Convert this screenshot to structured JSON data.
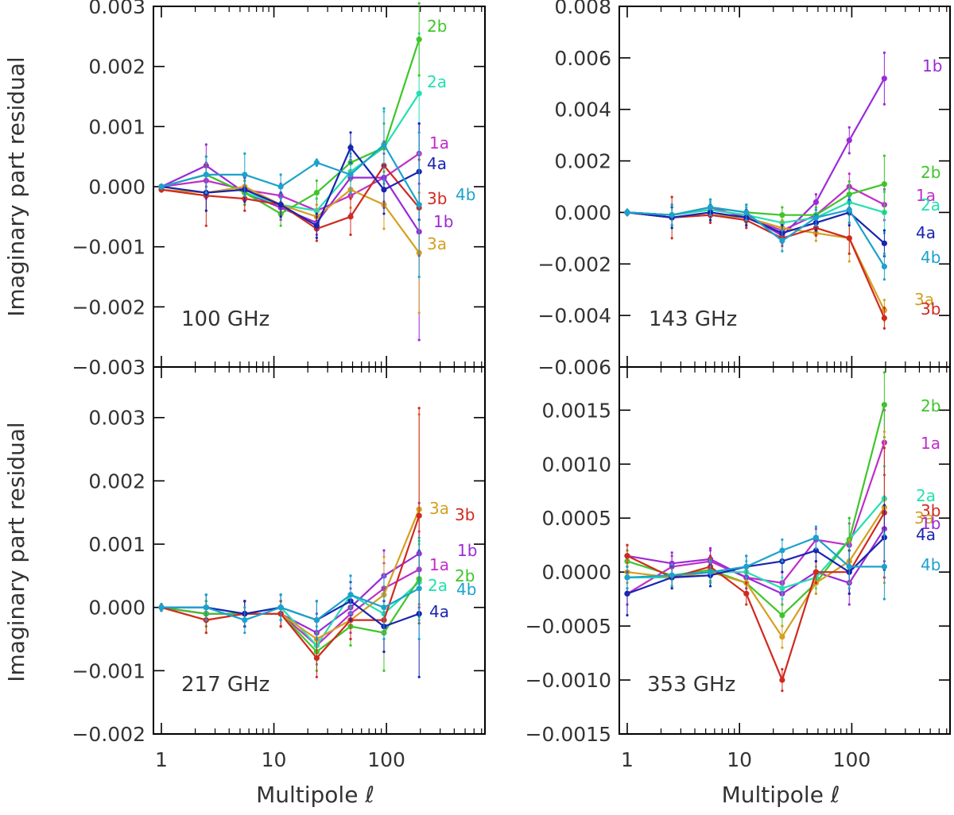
{
  "chart_data": [
    {
      "type": "line",
      "title": "100 GHz",
      "xlabel": "",
      "ylabel": "Imaginary part residual",
      "xscale": "log",
      "xlim": [
        0.85,
        750
      ],
      "xticks": [
        1,
        10,
        100
      ],
      "xtick_labels": [
        "",
        "",
        ""
      ],
      "ylim": [
        -0.003,
        0.003
      ],
      "yticks": [
        -0.003,
        -0.002,
        -0.001,
        0.0,
        0.001,
        0.002,
        0.003
      ],
      "ytick_labels": [
        "−0.003",
        "−0.002",
        "−0.001",
        "0.000",
        "0.001",
        "0.002",
        "0.003"
      ],
      "x": [
        1,
        2.5,
        5.5,
        11.5,
        24,
        48,
        95,
        195
      ],
      "series": [
        {
          "name": "1a",
          "color": "#c02ec8",
          "values": [
            0.0,
            0.0001,
            -5e-05,
            -0.00015,
            -0.0004,
            -0.00015,
            0.00015,
            0.00055
          ],
          "err": [
            3e-05,
            0.0003,
            0.0002,
            0.0002,
            0.0002,
            0.0003,
            0.0004,
            0.0005
          ]
        },
        {
          "name": "1b",
          "color": "#9b2ad8",
          "values": [
            0.0,
            0.00035,
            -0.0001,
            -0.00035,
            -0.0006,
            0.00015,
            0.00015,
            -0.00075
          ],
          "err": [
            3e-05,
            0.00035,
            0.0002,
            0.0002,
            0.0002,
            0.0003,
            0.0005,
            0.0018
          ]
        },
        {
          "name": "2a",
          "color": "#22e0b0",
          "values": [
            0.0,
            0.0002,
            -0.0001,
            -0.0003,
            -0.0004,
            0.00025,
            0.00065,
            0.00155
          ],
          "err": [
            3e-05,
            0.0003,
            0.0002,
            0.0002,
            0.0002,
            0.0003,
            0.0006,
            0.001
          ]
        },
        {
          "name": "2b",
          "color": "#3fc52a",
          "values": [
            0.0,
            0.0002,
            -0.0001,
            -0.00045,
            -0.0001,
            0.0004,
            0.00065,
            0.00245
          ],
          "err": [
            3e-05,
            0.0003,
            0.0002,
            0.0002,
            0.0002,
            0.0003,
            0.0004,
            0.0006
          ]
        },
        {
          "name": "3a",
          "color": "#d4a020",
          "values": [
            -5e-05,
            -0.0001,
            0.0,
            -0.0003,
            -0.0005,
            -5e-05,
            -0.0003,
            -0.0011
          ],
          "err": [
            3e-05,
            0.0003,
            0.0002,
            0.0002,
            0.0002,
            0.0003,
            0.0004,
            0.001
          ]
        },
        {
          "name": "3b",
          "color": "#d02a1f",
          "values": [
            -5e-05,
            -0.00015,
            -0.0002,
            -0.0003,
            -0.0007,
            -0.0005,
            0.00035,
            -0.00035
          ],
          "err": [
            3e-05,
            0.0005,
            0.0002,
            0.0002,
            0.0002,
            0.0003,
            0.0004,
            0.0008
          ]
        },
        {
          "name": "4a",
          "color": "#1a24b0",
          "values": [
            0.0,
            -0.0001,
            -5e-05,
            -0.0003,
            -0.00065,
            0.00065,
            -5e-05,
            0.00025
          ],
          "err": [
            3e-05,
            0.0003,
            0.0002,
            0.0002,
            0.0002,
            0.00025,
            0.0004,
            0.0008
          ]
        },
        {
          "name": "4b",
          "color": "#1ca2cc",
          "values": [
            0.0,
            0.0002,
            0.0002,
            0.0,
            0.0004,
            0.0002,
            0.0007,
            -0.0003
          ],
          "err": [
            3e-05,
            0.0003,
            0.00035,
            0.0002,
            5e-05,
            0.0003,
            0.0006,
            0.0012
          ]
        }
      ],
      "series_labels": [
        "2b",
        "2a",
        "1a",
        "4a",
        "4b",
        "3b",
        "1b",
        "3a"
      ]
    },
    {
      "type": "line",
      "title": "143 GHz",
      "xlabel": "",
      "ylabel": "",
      "xscale": "log",
      "xlim": [
        0.85,
        750
      ],
      "xticks": [
        1,
        10,
        100
      ],
      "xtick_labels": [
        "",
        "",
        ""
      ],
      "ylim": [
        -0.006,
        0.008
      ],
      "yticks": [
        -0.006,
        -0.004,
        -0.002,
        0.0,
        0.002,
        0.004,
        0.006,
        0.008
      ],
      "ytick_labels": [
        "−0.006",
        "−0.004",
        "−0.002",
        "0.000",
        "0.002",
        "0.004",
        "0.006",
        "0.008"
      ],
      "x": [
        1,
        2.5,
        5.5,
        11.5,
        24,
        48,
        95,
        195
      ],
      "series": [
        {
          "name": "1a",
          "color": "#c02ec8",
          "values": [
            0.0,
            -0.0001,
            0.0002,
            -0.0002,
            -0.0007,
            -0.0001,
            0.001,
            0.0003
          ],
          "err": [
            0.0001,
            0.0004,
            0.0003,
            0.0003,
            0.0003,
            0.0003,
            0.0005,
            0.0006
          ]
        },
        {
          "name": "1b",
          "color": "#9b2ad8",
          "values": [
            0.0,
            -0.0001,
            0.0001,
            -0.0001,
            -0.0009,
            0.0004,
            0.0028,
            0.0052
          ],
          "err": [
            0.0001,
            0.0004,
            0.0003,
            0.0003,
            0.0003,
            0.0003,
            0.0005,
            0.001
          ]
        },
        {
          "name": "2a",
          "color": "#22e0b0",
          "values": [
            0.0,
            -0.0001,
            0.0001,
            -0.0001,
            -0.0004,
            -0.0002,
            0.0004,
            0.0
          ],
          "err": [
            0.0001,
            0.0004,
            0.0003,
            0.0003,
            0.0003,
            0.0003,
            0.0005,
            0.0008
          ]
        },
        {
          "name": "2b",
          "color": "#3fc52a",
          "values": [
            0.0,
            -0.0001,
            0.0002,
            0.0,
            -0.0001,
            -0.0001,
            0.0007,
            0.0011
          ],
          "err": [
            0.0001,
            0.0004,
            0.0003,
            0.0003,
            0.0003,
            0.0003,
            0.0005,
            0.0011
          ]
        },
        {
          "name": "3a",
          "color": "#d4a020",
          "values": [
            0.0,
            -0.0002,
            -0.0001,
            -0.0002,
            -0.0006,
            -0.0008,
            -0.001,
            -0.0038
          ],
          "err": [
            0.0001,
            0.0004,
            0.0003,
            0.0003,
            0.0003,
            0.0003,
            0.0009,
            0.0004
          ]
        },
        {
          "name": "3b",
          "color": "#d02a1f",
          "values": [
            0.0,
            -0.0002,
            -0.0001,
            -0.0003,
            -0.001,
            -0.0006,
            -0.001,
            -0.0041
          ],
          "err": [
            0.0001,
            0.0008,
            0.0003,
            0.0003,
            0.0003,
            0.0003,
            0.0006,
            0.0004
          ]
        },
        {
          "name": "4a",
          "color": "#1a24b0",
          "values": [
            0.0,
            -0.0002,
            0.0,
            -0.0002,
            -0.0008,
            -0.0004,
            0.0,
            -0.0012
          ],
          "err": [
            0.0001,
            0.0004,
            0.0003,
            0.0003,
            0.0003,
            0.0003,
            0.0005,
            0.0005
          ]
        },
        {
          "name": "4b",
          "color": "#1ca2cc",
          "values": [
            0.0,
            -0.0001,
            0.0002,
            0.0,
            -0.0011,
            -0.0002,
            0.0001,
            -0.0021
          ],
          "err": [
            0.0001,
            0.0004,
            0.0003,
            0.0003,
            0.0004,
            0.0003,
            0.0005,
            0.0005
          ]
        }
      ],
      "series_labels": [
        "1b",
        "2b",
        "1a",
        "2a",
        "4a",
        "4b",
        "3a",
        "3b"
      ]
    },
    {
      "type": "line",
      "title": "217 GHz",
      "xlabel": "Multipole ℓ",
      "ylabel": "Imaginary part residual",
      "xscale": "log",
      "xlim": [
        0.85,
        750
      ],
      "xticks": [
        1,
        10,
        100
      ],
      "xtick_labels": [
        "1",
        "10",
        "100"
      ],
      "ylim": [
        -0.002,
        0.0038
      ],
      "yticks": [
        -0.002,
        -0.001,
        0.0,
        0.001,
        0.002,
        0.003
      ],
      "ytick_labels": [
        "−0.002",
        "−0.001",
        "0.000",
        "0.001",
        "0.002",
        "0.003"
      ],
      "x": [
        1,
        2.5,
        5.5,
        11.5,
        24,
        48,
        95,
        195
      ],
      "series": [
        {
          "name": "1a",
          "color": "#c02ec8",
          "values": [
            0.0,
            -0.0001,
            -0.0001,
            -0.0001,
            -0.0006,
            -0.0001,
            0.0003,
            0.0006
          ],
          "err": [
            5e-05,
            0.0002,
            0.0002,
            0.0002,
            0.0003,
            0.0003,
            0.0004,
            0.0006
          ]
        },
        {
          "name": "1b",
          "color": "#9b2ad8",
          "values": [
            0.0,
            -0.0001,
            -0.0001,
            -0.0001,
            -0.0004,
            0.0,
            0.0005,
            0.00085
          ],
          "err": [
            5e-05,
            0.0002,
            0.0002,
            0.0002,
            0.0003,
            0.0003,
            0.0004,
            0.0008
          ]
        },
        {
          "name": "2a",
          "color": "#22e0b0",
          "values": [
            0.0,
            0.0,
            -0.0001,
            0.0,
            -0.0006,
            0.0002,
            -0.0001,
            0.0004
          ],
          "err": [
            5e-05,
            0.0002,
            0.0002,
            0.0002,
            0.0003,
            0.0003,
            0.0004,
            0.0006
          ]
        },
        {
          "name": "2b",
          "color": "#3fc52a",
          "values": [
            0.0,
            -0.0001,
            -0.0001,
            -0.0001,
            -0.0007,
            -0.0003,
            -0.0004,
            0.00045
          ],
          "err": [
            5e-05,
            0.0002,
            0.0002,
            0.0002,
            0.0003,
            0.0003,
            0.0006,
            0.0006
          ]
        },
        {
          "name": "3a",
          "color": "#d4a020",
          "values": [
            0.0,
            -0.0002,
            -0.0001,
            -0.0001,
            -0.0005,
            -0.0002,
            0.0002,
            0.00155
          ],
          "err": [
            5e-05,
            0.0002,
            0.0002,
            0.0002,
            0.0003,
            0.0003,
            0.0006,
            0.0015
          ]
        },
        {
          "name": "3b",
          "color": "#d02a1f",
          "values": [
            0.0,
            -0.0002,
            -0.0001,
            -0.0001,
            -0.0008,
            -0.0002,
            -0.0002,
            0.00145
          ],
          "err": [
            5e-05,
            0.0002,
            0.0002,
            0.0002,
            0.0003,
            0.0003,
            0.0005,
            0.0017
          ]
        },
        {
          "name": "4a",
          "color": "#1a24b0",
          "values": [
            0.0,
            0.0,
            -0.0001,
            0.0,
            -0.0002,
            0.0001,
            -0.0003,
            -0.0001
          ],
          "err": [
            5e-05,
            0.0002,
            0.0002,
            0.0002,
            0.0003,
            0.0003,
            0.0004,
            0.001
          ]
        },
        {
          "name": "4b",
          "color": "#1ca2cc",
          "values": [
            0.0,
            0.0,
            -0.0002,
            0.0,
            -0.0002,
            0.0002,
            0.0,
            0.0003
          ],
          "err": [
            5e-05,
            0.0002,
            0.0002,
            0.0002,
            0.0003,
            0.0003,
            0.0005,
            0.0008
          ]
        }
      ],
      "series_labels": [
        "3a",
        "3b",
        "1b",
        "1a",
        "2b",
        "2a",
        "4b",
        "4a"
      ]
    },
    {
      "type": "line",
      "title": "353 GHz",
      "xlabel": "Multipole ℓ",
      "ylabel": "",
      "xscale": "log",
      "xlim": [
        0.85,
        750
      ],
      "xticks": [
        1,
        10,
        100
      ],
      "xtick_labels": [
        "1",
        "10",
        "100"
      ],
      "ylim": [
        -0.0015,
        0.0019
      ],
      "yticks": [
        -0.0015,
        -0.001,
        -0.0005,
        0.0,
        0.0005,
        0.001,
        0.0015
      ],
      "ytick_labels": [
        "−0.0015",
        "−0.0010",
        "−0.0005",
        "0.0000",
        "0.0005",
        "0.0010",
        "0.0015"
      ],
      "x": [
        1,
        2.5,
        5.5,
        11.5,
        24,
        48,
        95,
        195
      ],
      "series": [
        {
          "name": "1a",
          "color": "#c02ec8",
          "values": [
            -0.0002,
            5e-05,
            0.0001,
            -5e-05,
            -0.0001,
            0.0003,
            0.00025,
            0.0012
          ],
          "err": [
            0.0001,
            0.0001,
            0.0001,
            0.0001,
            0.0001,
            0.0001,
            0.0002,
            0.0003
          ]
        },
        {
          "name": "1b",
          "color": "#9b2ad8",
          "values": [
            0.00015,
            8e-05,
            0.00012,
            -5e-05,
            -0.0002,
            0.0,
            -0.0001,
            0.0004
          ],
          "err": [
            0.0001,
            0.0001,
            0.0001,
            0.0001,
            0.0001,
            0.0001,
            0.0002,
            0.0003
          ]
        },
        {
          "name": "2a",
          "color": "#22e0b0",
          "values": [
            -5e-05,
            -5e-05,
            0.0,
            0.0,
            -0.00015,
            -5e-05,
            0.0003,
            0.00068
          ],
          "err": [
            0.0001,
            0.0001,
            0.0001,
            0.0001,
            0.0001,
            0.0001,
            0.0002,
            0.0003
          ]
        },
        {
          "name": "2b",
          "color": "#3fc52a",
          "values": [
            0.0001,
            -3e-05,
            2e-05,
            -0.0001,
            -0.0004,
            -0.0001,
            0.0003,
            0.00155
          ],
          "err": [
            0.0001,
            0.0001,
            0.0001,
            0.0001,
            0.0001,
            0.0001,
            0.0002,
            0.0003
          ]
        },
        {
          "name": "3a",
          "color": "#d4a020",
          "values": [
            0.0,
            -5e-05,
            0.0,
            -0.0001,
            -0.0006,
            -0.0001,
            0.0001,
            0.0006
          ],
          "err": [
            0.0001,
            0.0001,
            0.0001,
            0.0001,
            0.0001,
            0.0001,
            0.0002,
            0.0007
          ]
        },
        {
          "name": "3b",
          "color": "#d02a1f",
          "values": [
            0.00015,
            -5e-05,
            5e-05,
            -0.0002,
            -0.001,
            0.0,
            0.0,
            0.00055
          ],
          "err": [
            0.0001,
            0.0001,
            0.0001,
            0.0001,
            0.0001,
            0.0001,
            0.0002,
            0.0006
          ]
        },
        {
          "name": "4a",
          "color": "#1a24b0",
          "values": [
            -0.0002,
            -5e-05,
            -3e-05,
            5e-05,
            0.0001,
            0.0002,
            0.0,
            0.00032
          ],
          "err": [
            0.0002,
            0.0001,
            0.0001,
            0.0001,
            0.0001,
            0.0001,
            0.0002,
            0.0003
          ]
        },
        {
          "name": "4b",
          "color": "#1ca2cc",
          "values": [
            -5e-05,
            -3e-05,
            0.0,
            5e-05,
            0.0002,
            0.00032,
            5e-05,
            5e-05
          ],
          "err": [
            0.0001,
            0.0001,
            0.0001,
            0.0001,
            0.0001,
            0.0001,
            0.0002,
            0.0003
          ]
        }
      ],
      "series_labels": [
        "2b",
        "1a",
        "2a",
        "3b",
        "3a",
        "1b",
        "4a",
        "4b"
      ]
    }
  ]
}
